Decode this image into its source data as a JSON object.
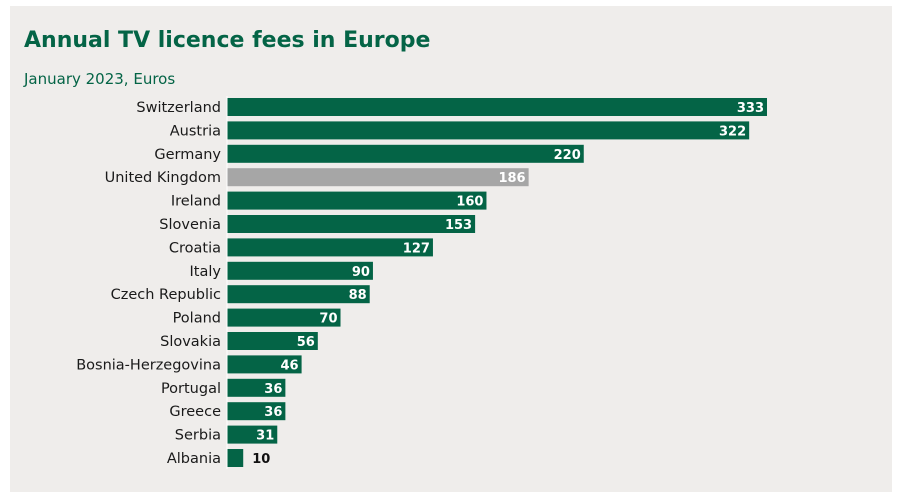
{
  "chart_data": {
    "type": "bar",
    "orientation": "horizontal",
    "title": "Annual TV licence fees in Europe",
    "subtitle": "January 2023, Euros",
    "categories": [
      "Switzerland",
      "Austria",
      "Germany",
      "United Kingdom",
      "Ireland",
      "Slovenia",
      "Croatia",
      "Italy",
      "Czech Republic",
      "Poland",
      "Slovakia",
      "Bosnia-Herzegovina",
      "Portugal",
      "Greece",
      "Serbia",
      "Albania"
    ],
    "values": [
      333,
      322,
      220,
      186,
      160,
      153,
      127,
      90,
      88,
      70,
      56,
      46,
      36,
      36,
      31,
      10
    ],
    "highlight": "United Kingdom",
    "grid": false,
    "legend": "none"
  },
  "colors": {
    "bar": "#046446",
    "highlight_bar": "#a6a6a6",
    "title": "#046446",
    "background": "#efedeb"
  }
}
